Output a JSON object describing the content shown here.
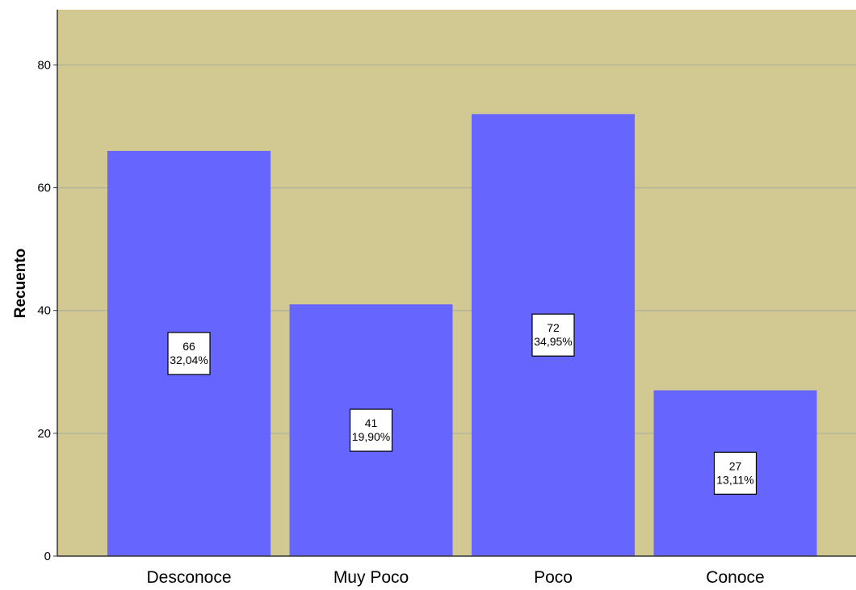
{
  "chart_data": {
    "type": "bar",
    "categories": [
      "Desconoce",
      "Muy Poco",
      "Poco",
      "Conoce"
    ],
    "values": [
      66,
      41,
      72,
      27
    ],
    "percent_labels": [
      "32,04%",
      "19,90%",
      "34,95%",
      "13,11%"
    ],
    "ylabel": "Recuento",
    "xlabel": "",
    "ylim": [
      0,
      89
    ],
    "yticks": [
      0,
      20,
      40,
      60,
      80
    ],
    "grid": true,
    "colors": {
      "plot_background": "#d1c991",
      "bar_fill": "#6666ff",
      "gridline": "#b4b49a",
      "axis": "#333333",
      "label_box_fill": "#ffffff",
      "label_box_stroke": "#000000"
    }
  }
}
